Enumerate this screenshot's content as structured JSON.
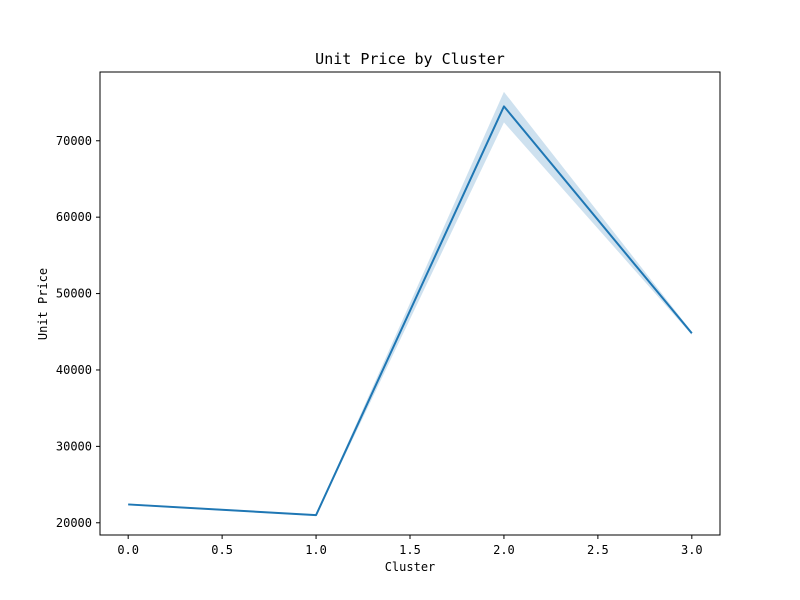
{
  "chart_data": {
    "type": "line",
    "title": "Unit Price by Cluster",
    "xlabel": "Cluster",
    "ylabel": "Unit Price",
    "xlim": [
      -0.15,
      3.15
    ],
    "ylim": [
      18400,
      79000
    ],
    "x_ticks": [
      "0.0",
      "0.5",
      "1.0",
      "1.5",
      "2.0",
      "2.5",
      "3.0"
    ],
    "x_tick_values": [
      0,
      0.5,
      1,
      1.5,
      2,
      2.5,
      3
    ],
    "y_ticks": [
      "20000",
      "30000",
      "40000",
      "50000",
      "60000",
      "70000"
    ],
    "y_tick_values": [
      20000,
      30000,
      40000,
      50000,
      60000,
      70000
    ],
    "grid": false,
    "series": [
      {
        "x": [
          0,
          1,
          2,
          3
        ],
        "y": [
          22400,
          21000,
          74500,
          44800
        ],
        "ci_lower": [
          22300,
          20900,
          72400,
          44600
        ],
        "ci_upper": [
          22500,
          21100,
          76400,
          45000
        ],
        "color": "#1f77b4",
        "band_color": "#1f77b4"
      }
    ]
  }
}
